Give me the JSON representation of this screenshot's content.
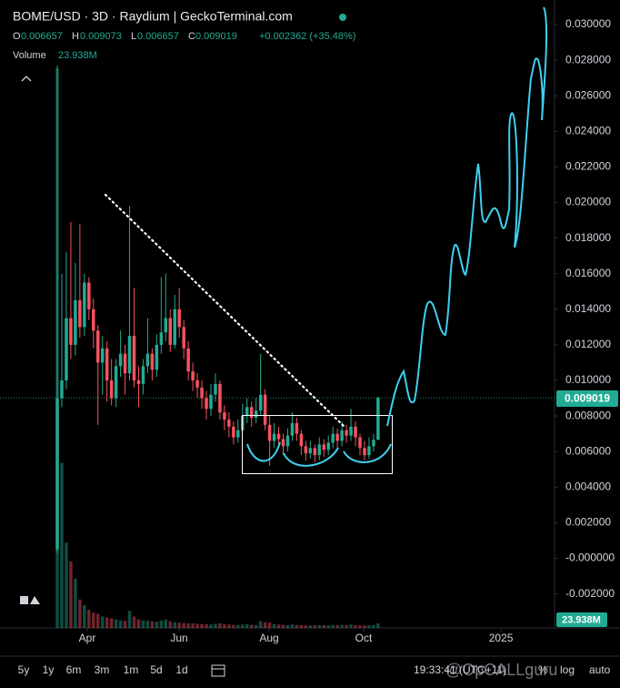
{
  "chart_data": {
    "type": "candlestick",
    "title": "BOME/USD · 3D · Raydium | GeckoTerminal.com",
    "ohlc_labels": [
      "O",
      "H",
      "L",
      "C"
    ],
    "change_label": "+0.002362 (+35.48%)",
    "volume_title": "Volume",
    "volume_label": "23.938M",
    "up_color": "#22ab94",
    "down_color": "#f7525f",
    "grid": false,
    "open": [
      0.0005,
      0.009,
      0.01,
      0.0135,
      0.012,
      0.0145,
      0.013,
      0.0155,
      0.014,
      0.0128,
      0.011,
      0.0118,
      0.01,
      0.009,
      0.0108,
      0.0115,
      0.0104,
      0.0125,
      0.01,
      0.0098,
      0.0108,
      0.0115,
      0.0106,
      0.012,
      0.0127,
      0.0135,
      0.012,
      0.014,
      0.013,
      0.0118,
      0.0105,
      0.01,
      0.0096,
      0.009,
      0.0084,
      0.0092,
      0.0098,
      0.0082,
      0.0078,
      0.0074,
      0.0068,
      0.0072,
      0.008,
      0.0085,
      0.0079,
      0.0083,
      0.0092,
      0.0075,
      0.0066,
      0.007,
      0.0067,
      0.0063,
      0.0069,
      0.0076,
      0.007,
      0.0063,
      0.0059,
      0.0062,
      0.0058,
      0.0064,
      0.0061,
      0.0065,
      0.007,
      0.0066,
      0.0072,
      0.0069,
      0.0074,
      0.0068,
      0.0062,
      0.0058,
      0.0063,
      0.006657
    ],
    "high": [
      0.0277,
      0.016,
      0.0172,
      0.0189,
      0.0166,
      0.0188,
      0.016,
      0.0158,
      0.0146,
      0.0131,
      0.0125,
      0.0122,
      0.0112,
      0.0112,
      0.0128,
      0.012,
      0.0198,
      0.0152,
      0.0108,
      0.0112,
      0.0135,
      0.0118,
      0.0126,
      0.0158,
      0.016,
      0.014,
      0.0148,
      0.0152,
      0.0134,
      0.0122,
      0.011,
      0.0104,
      0.01,
      0.0094,
      0.0098,
      0.0104,
      0.01,
      0.0086,
      0.0082,
      0.0077,
      0.0078,
      0.0087,
      0.009,
      0.0088,
      0.009,
      0.0115,
      0.0095,
      0.008,
      0.0076,
      0.0074,
      0.007,
      0.0073,
      0.0082,
      0.0079,
      0.0072,
      0.0066,
      0.0066,
      0.0064,
      0.0068,
      0.0067,
      0.0069,
      0.0074,
      0.0073,
      0.0077,
      0.0075,
      0.0084,
      0.0077,
      0.007,
      0.0066,
      0.0068,
      0.007,
      0.009073
    ],
    "low": [
      0.0003,
      0.0085,
      0.0095,
      0.0112,
      0.0114,
      0.0124,
      0.0125,
      0.0134,
      0.0118,
      0.0075,
      0.0092,
      0.0088,
      0.0086,
      0.0085,
      0.0102,
      0.0092,
      0.01,
      0.0096,
      0.0085,
      0.0092,
      0.0104,
      0.01,
      0.0102,
      0.0115,
      0.0122,
      0.0116,
      0.0118,
      0.0124,
      0.0112,
      0.01,
      0.0094,
      0.009,
      0.0084,
      0.0078,
      0.008,
      0.0088,
      0.0078,
      0.0072,
      0.0068,
      0.0064,
      0.0065,
      0.007,
      0.0076,
      0.0074,
      0.0076,
      0.008,
      0.0072,
      0.0052,
      0.0062,
      0.0062,
      0.0058,
      0.006,
      0.0066,
      0.0066,
      0.0058,
      0.0055,
      0.0056,
      0.0054,
      0.0055,
      0.0057,
      0.0058,
      0.0062,
      0.0062,
      0.0063,
      0.0065,
      0.0066,
      0.0063,
      0.0058,
      0.0055,
      0.0056,
      0.006,
      0.006657
    ],
    "close": [
      0.009,
      0.01,
      0.0135,
      0.012,
      0.0145,
      0.013,
      0.0155,
      0.014,
      0.0128,
      0.011,
      0.0118,
      0.01,
      0.009,
      0.0108,
      0.0115,
      0.0104,
      0.0125,
      0.01,
      0.0098,
      0.0108,
      0.0115,
      0.0106,
      0.012,
      0.0127,
      0.0135,
      0.012,
      0.014,
      0.013,
      0.0118,
      0.0105,
      0.01,
      0.0096,
      0.009,
      0.0084,
      0.0092,
      0.0098,
      0.0082,
      0.0078,
      0.0074,
      0.0068,
      0.0072,
      0.008,
      0.0085,
      0.0079,
      0.0083,
      0.0092,
      0.0075,
      0.0066,
      0.007,
      0.0067,
      0.0063,
      0.0069,
      0.0076,
      0.007,
      0.0063,
      0.0059,
      0.0062,
      0.0058,
      0.0064,
      0.0061,
      0.0065,
      0.007,
      0.0066,
      0.0072,
      0.0069,
      0.0074,
      0.0068,
      0.0062,
      0.0058,
      0.0063,
      0.006657,
      0.009019
    ],
    "volume": [
      2950,
      870,
      450,
      350,
      260,
      150,
      120,
      95,
      80,
      75,
      60,
      55,
      50,
      45,
      40,
      38,
      90,
      60,
      45,
      40,
      38,
      35,
      32,
      40,
      45,
      35,
      30,
      28,
      26,
      25,
      24,
      22,
      20,
      20,
      18,
      22,
      25,
      20,
      18,
      16,
      15,
      18,
      20,
      16,
      15,
      35,
      30,
      28,
      20,
      18,
      16,
      15,
      18,
      16,
      15,
      14,
      13,
      14,
      15,
      14,
      13,
      15,
      14,
      16,
      15,
      18,
      15,
      14,
      13,
      14,
      15,
      23.938
    ],
    "ylim": [
      -0.003913,
      0.031381
    ],
    "yticks": [
      {
        "value": 0.03,
        "label": "0.030000"
      },
      {
        "value": 0.028,
        "label": "0.028000"
      },
      {
        "value": 0.026,
        "label": "0.026000"
      },
      {
        "value": 0.024,
        "label": "0.024000"
      },
      {
        "value": 0.022,
        "label": "0.022000"
      },
      {
        "value": 0.02,
        "label": "0.020000"
      },
      {
        "value": 0.018,
        "label": "0.018000"
      },
      {
        "value": 0.016,
        "label": "0.016000"
      },
      {
        "value": 0.014,
        "label": "0.014000"
      },
      {
        "value": 0.012,
        "label": "0.012000"
      },
      {
        "value": 0.01,
        "label": "0.010000"
      },
      {
        "value": 0.008,
        "label": "0.008000"
      },
      {
        "value": 0.006,
        "label": "0.006000"
      },
      {
        "value": 0.004,
        "label": "0.004000"
      },
      {
        "value": 0.002,
        "label": "0.002000"
      },
      {
        "value": 0,
        "label": "-0.000000"
      },
      {
        "value": -0.002,
        "label": "-0.002000"
      }
    ],
    "xlim": [
      -12.68,
      110.06
    ],
    "xticks": [
      {
        "value": 6.64,
        "label": "Apr"
      },
      {
        "value": 26.96,
        "label": "Jun"
      },
      {
        "value": 46.88,
        "label": "Aug"
      },
      {
        "value": 67.8,
        "label": "Oct"
      },
      {
        "value": 98.2,
        "label": "2025"
      }
    ]
  },
  "toolbar": {
    "ranges": [
      "5y",
      "1y",
      "6m",
      "3m",
      "1m",
      "5d",
      "1d"
    ],
    "time": "19:33:41 (UTC+11)",
    "scale_options": [
      "%",
      "log",
      "auto"
    ]
  },
  "watermark": "@OpCALLguru"
}
